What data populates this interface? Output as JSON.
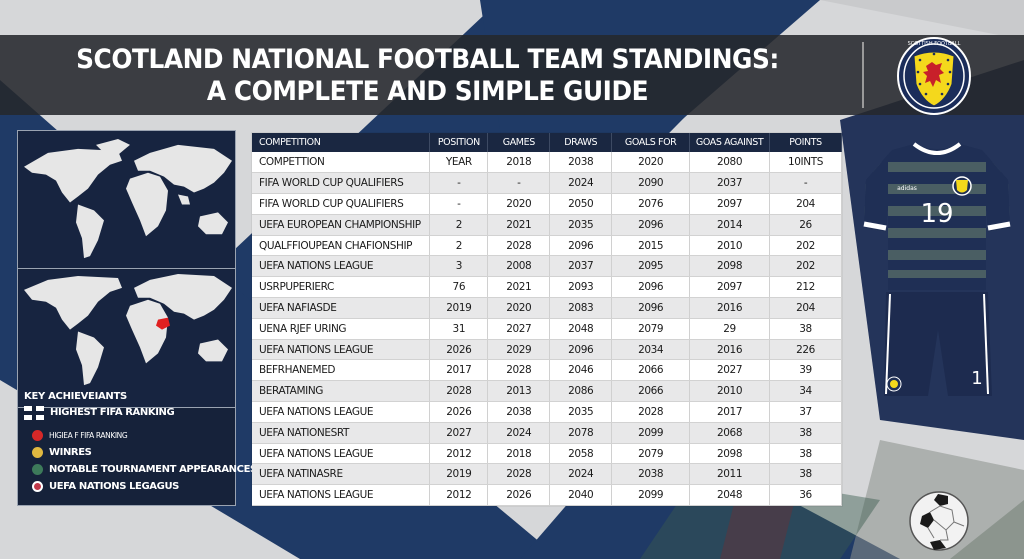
{
  "title": {
    "line1": "SCOTLAND NATIONAL FOOTBALL TEAM STANDINGS:",
    "line2": "A COMPLETE AND SIMPLE GUIDE"
  },
  "crest": {
    "ring_text": "SCOTTISH FOOTBALL ASSOCIATION",
    "icon": "lion-rampant-crest-icon"
  },
  "maps": [
    {
      "name": "world-map-top",
      "highlight": null
    },
    {
      "name": "world-map-bottom",
      "highlight": "east-africa",
      "highlight_color": "#e02020"
    }
  ],
  "legend": {
    "title": "KEY ACHIEVEIANTS",
    "items": [
      {
        "label": "HIGHEST FIFA RANKING",
        "icon": "saltire-flag-icon"
      },
      {
        "label": "HIGIEA F FIFA RANKING",
        "icon": "red-dot-icon",
        "color": "#d62828"
      },
      {
        "label": "WINRES",
        "icon": "gold-dot-icon",
        "color": "#e0b840"
      },
      {
        "label": "NOTABLE TOURNAMENT APPEARANCES",
        "icon": "green-badge-icon",
        "color": "#3d7a5a"
      },
      {
        "label": "UEFA NATIONS LEGAGUS",
        "icon": "red-badge-icon",
        "color": "#c0394a"
      }
    ]
  },
  "table": {
    "headers": [
      "COMPETITION",
      "POSITION",
      "GAMES",
      "DRAWS",
      "GOALS FOR",
      "GOAS AGAINST",
      "POINTS"
    ],
    "rows": [
      [
        "COMPETTION",
        "YEAR",
        "2018",
        "2038",
        "2020",
        "2080",
        "10INTS"
      ],
      [
        "FIFA WORLD CUP QUALIFIERS",
        "-",
        "-",
        "2024",
        "2090",
        "2037",
        "-"
      ],
      [
        "FIFA WORLD CUP QUALIFIERS",
        "-",
        "2020",
        "2050",
        "2076",
        "2097",
        "204"
      ],
      [
        "UEFA EUROPEAN CHAMPIONSHIP",
        "2",
        "2021",
        "2035",
        "2096",
        "2014",
        "26"
      ],
      [
        "QUALFFIOUPEAN CHAFIONSHIP",
        "2",
        "2028",
        "2096",
        "2015",
        "2010",
        "202"
      ],
      [
        "UEFA NATIONS LEAGUE",
        "3",
        "2008",
        "2037",
        "2095",
        "2098",
        "202"
      ],
      [
        "USRPUPERIERC",
        "76",
        "2021",
        "2093",
        "2096",
        "2097",
        "212"
      ],
      [
        "UEFA NAFIASDE",
        "2019",
        "2020",
        "2083",
        "2096",
        "2016",
        "204"
      ],
      [
        "UENA RJEF URING",
        "31",
        "2027",
        "2048",
        "2079",
        "29",
        "38"
      ],
      [
        "UEFA NATIONS LEAGUE",
        "2026",
        "2029",
        "2096",
        "2034",
        "2016",
        "226"
      ],
      [
        "BEFRHANEMED",
        "2017",
        "2028",
        "2046",
        "2066",
        "2027",
        "39"
      ],
      [
        "BERATAMING",
        "2028",
        "2013",
        "2086",
        "2066",
        "2010",
        "34"
      ],
      [
        "UEFA NATIONS LEAGUE",
        "2026",
        "2038",
        "2035",
        "2028",
        "2017",
        "37"
      ],
      [
        "UEFA NATIONESRT",
        "2027",
        "2024",
        "2078",
        "2099",
        "2068",
        "38"
      ],
      [
        "UEFA NATIONS LEAGUE",
        "2012",
        "2018",
        "2058",
        "2079",
        "2098",
        "38"
      ],
      [
        "UEFA NATINASRE",
        "2019",
        "2028",
        "2024",
        "2038",
        "2011",
        "38"
      ],
      [
        "UEFA NATIONS LEAGUE",
        "2012",
        "2026",
        "2040",
        "2099",
        "2048",
        "36"
      ]
    ]
  },
  "kit": {
    "shirt_number": "19",
    "shorts_number": "1",
    "brand": "adidas"
  },
  "colors": {
    "navy": "#1f3a66",
    "dark_navy": "#16223a",
    "header_bg": "#1a2741",
    "title_band": "#26282c",
    "crest_yellow": "#f4d81c",
    "crest_red": "#c8202a"
  }
}
